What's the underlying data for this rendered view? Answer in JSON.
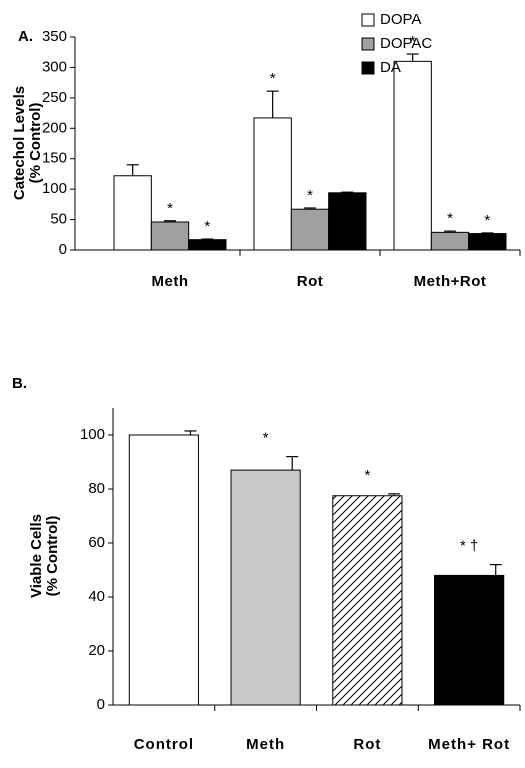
{
  "chart_data": [
    {
      "type": "bar",
      "panel_label": "A.",
      "y_label": [
        "Catechol Levels",
        "(% Control)"
      ],
      "categories": [
        "Meth",
        "Rot",
        "Meth+Rot"
      ],
      "series": [
        {
          "name": "DOPA",
          "color": "#ffffff",
          "values": [
            122,
            217,
            310
          ],
          "errors": [
            18,
            44,
            12
          ],
          "annotations": [
            null,
            "*",
            "*"
          ]
        },
        {
          "name": "DOPAC",
          "color": "#a0a0a0",
          "values": [
            46,
            67,
            29
          ],
          "errors": [
            2,
            2,
            2
          ],
          "annotations": [
            "*",
            "*",
            "*"
          ]
        },
        {
          "name": "DA",
          "color": "#000000",
          "values": [
            17,
            94,
            27
          ],
          "errors": [
            1,
            1,
            1
          ],
          "annotations": [
            "*",
            null,
            "*"
          ]
        }
      ],
      "ylim": [
        0,
        350
      ],
      "yticks": [
        0,
        50,
        100,
        150,
        200,
        250,
        300,
        350
      ],
      "legend": "top"
    },
    {
      "type": "bar",
      "panel_label": "B.",
      "y_label": [
        "Viable Cells",
        "(% Control)"
      ],
      "categories": [
        "Control",
        "Meth",
        "Rot",
        "Meth+  Rot"
      ],
      "values": [
        100,
        87,
        77.5,
        48
      ],
      "errors": [
        1.5,
        5,
        0.7,
        4
      ],
      "annotations": [
        null,
        "*",
        "*",
        "* †"
      ],
      "colors": [
        "#ffffff",
        "#c8c8c8",
        "#ffffff",
        "#000000"
      ],
      "hatch": [
        false,
        false,
        true,
        false
      ],
      "ylim": [
        0,
        110
      ],
      "yticks": [
        0,
        20,
        40,
        60,
        80,
        100
      ]
    }
  ]
}
